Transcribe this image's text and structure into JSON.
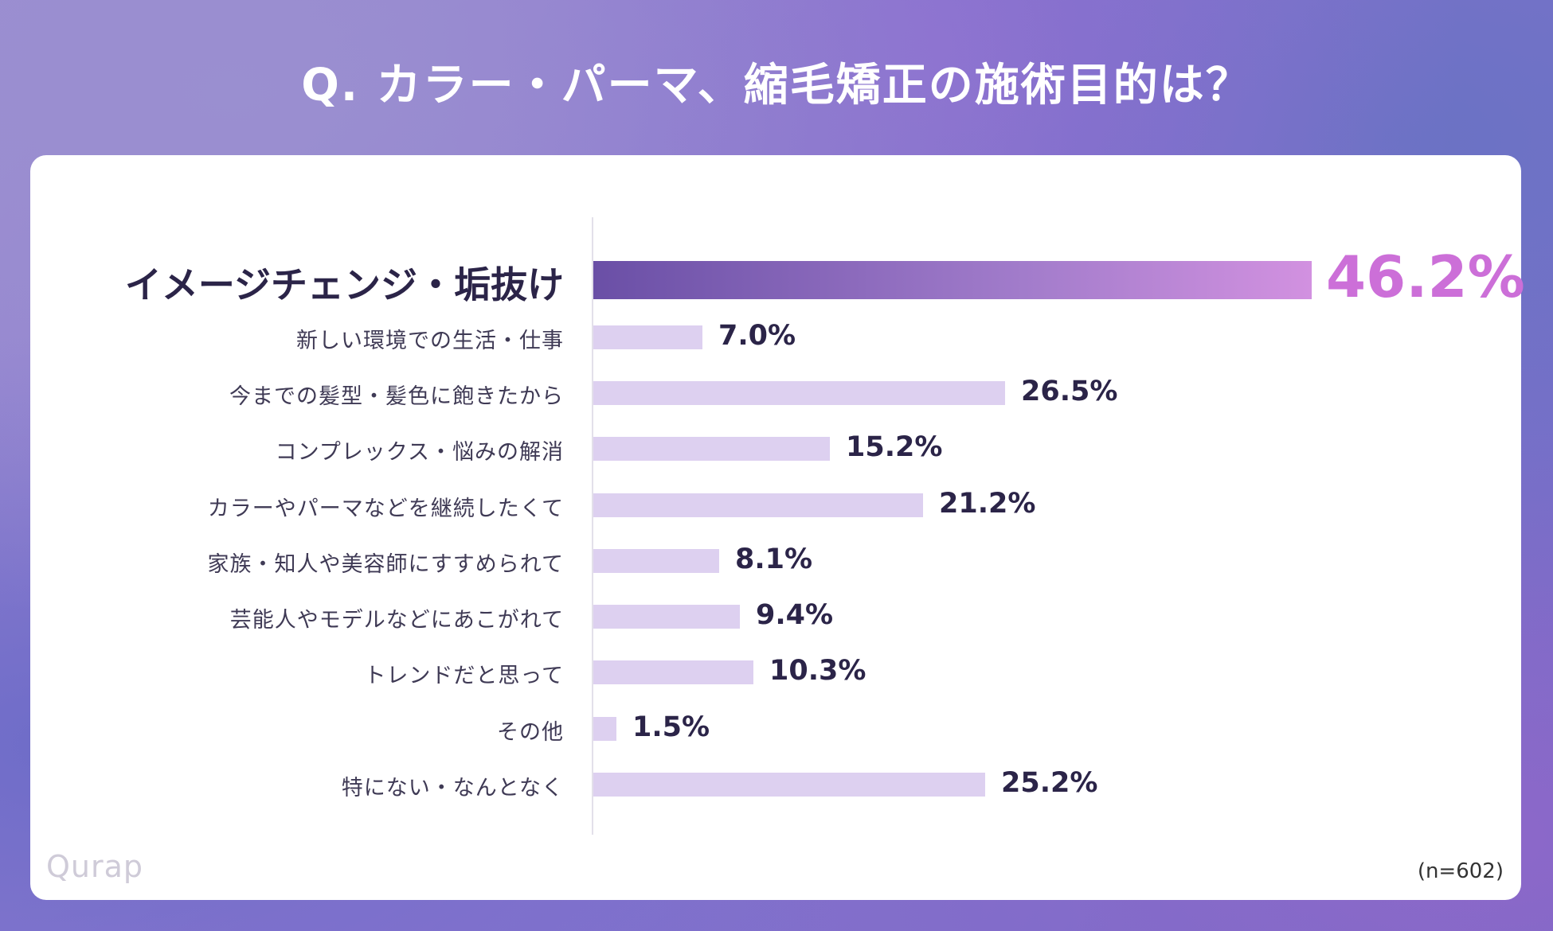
{
  "title": "Q. カラー・パーマ、縮毛矯正の施術目的は？",
  "chart_data": {
    "type": "bar",
    "orientation": "horizontal",
    "title": "Q. カラー・パーマ、縮毛矯正の施術目的は？",
    "categories": [
      "イメージチェンジ・垢抜け",
      "新しい環境での生活・仕事",
      "今までの髪型・髪色に飽きたから",
      "コンプレックス・悩みの解消",
      "カラーやパーマなどを継続したくて",
      "家族・知人や美容師にすすめられて",
      "芸能人やモデルなどにあこがれて",
      "トレンドだと思って",
      "その他",
      "特にない・なんとなく"
    ],
    "values": [
      46.2,
      7.0,
      26.5,
      15.2,
      21.2,
      8.1,
      9.4,
      10.3,
      1.5,
      25.2
    ],
    "value_labels": [
      "46.2%",
      "7.0%",
      "26.5%",
      "15.2%",
      "21.2%",
      "8.1%",
      "9.4%",
      "10.3%",
      "1.5%",
      "25.2%"
    ],
    "highlight_index": 0,
    "unit": "%",
    "xlim": [
      0,
      46.2
    ]
  },
  "sample_size": "(n=602)",
  "brand": "Qurap",
  "colors": {
    "bar": "#ddd0f0",
    "highlight_start": "#6a4fa6",
    "highlight_end": "#d291e0",
    "highlight_text": "#cc6fd8"
  }
}
